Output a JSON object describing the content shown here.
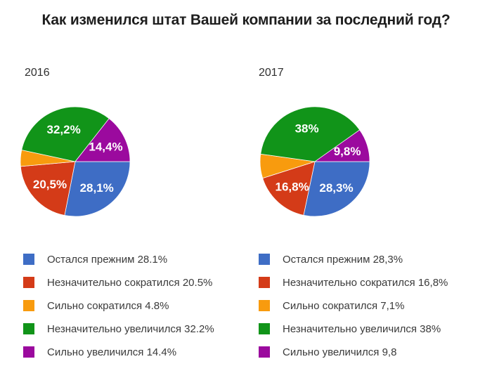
{
  "title": "Как изменился штат Вашей компании за последний год?",
  "background": "#ffffff",
  "pie_label_color": "#ffffff",
  "chart_data": [
    {
      "type": "pie",
      "title": "2016",
      "start_angle_deg": 90,
      "legend_position": "bottom",
      "slices": [
        {
          "label": "Остался прежним",
          "value": 28.1,
          "pie_label": "28,1%",
          "legend_text": "Остался прежним 28.1%",
          "color": "#3e6dc5"
        },
        {
          "label": "Незначительно сократился",
          "value": 20.5,
          "pie_label": "20,5%",
          "legend_text": "Незначительно сократился 20.5%",
          "color": "#d43b18"
        },
        {
          "label": "Сильно сократился",
          "value": 4.8,
          "pie_label": "",
          "legend_text": "Сильно сократился 4.8%",
          "color": "#f89b0e"
        },
        {
          "label": "Незначительно увеличился",
          "value": 32.2,
          "pie_label": "32,2%",
          "legend_text": "Незначительно увеличился 32.2%",
          "color": "#119419"
        },
        {
          "label": "Сильно увеличился",
          "value": 14.4,
          "pie_label": "14,4%",
          "legend_text": "Сильно увеличился 14.4%",
          "color": "#9b0a9e"
        }
      ]
    },
    {
      "type": "pie",
      "title": "2017",
      "start_angle_deg": 90,
      "legend_position": "bottom",
      "slices": [
        {
          "label": "Остался прежним",
          "value": 28.3,
          "pie_label": "28,3%",
          "legend_text": "Остался прежним 28,3%",
          "color": "#3e6dc5"
        },
        {
          "label": "Незначительно сократился",
          "value": 16.8,
          "pie_label": "16,8%",
          "legend_text": "Незначительно сократился 16,8%",
          "color": "#d43b18"
        },
        {
          "label": "Сильно сократился",
          "value": 7.1,
          "pie_label": "",
          "legend_text": "Сильно сократился 7,1%",
          "color": "#f89b0e"
        },
        {
          "label": "Незначительно увеличился",
          "value": 38,
          "pie_label": "38%",
          "legend_text": "Незначительно увеличился 38%",
          "color": "#119419"
        },
        {
          "label": "Сильно увеличился",
          "value": 9.8,
          "pie_label": "9,8%",
          "legend_text": "Сильно увеличился 9,8",
          "color": "#9b0a9e"
        }
      ]
    }
  ]
}
